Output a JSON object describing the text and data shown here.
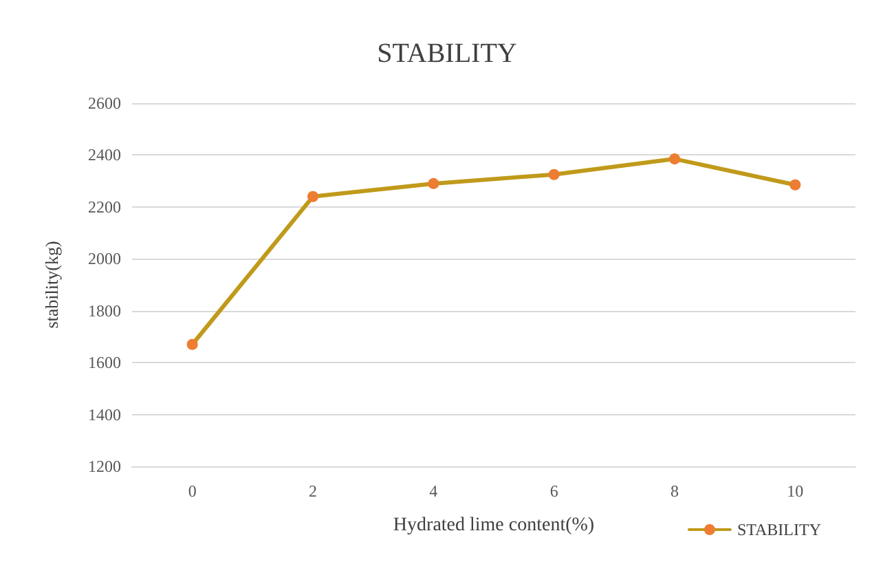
{
  "chart_data": {
    "type": "line",
    "title": "STABILITY",
    "xlabel": "Hydrated lime content(%)",
    "ylabel": "stability(kg)",
    "categories": [
      "0",
      "2",
      "4",
      "6",
      "8",
      "10"
    ],
    "series": [
      {
        "name": "STABILITY",
        "color": "#c09a1a",
        "values": [
          1670,
          2240,
          2290,
          2325,
          2385,
          2285
        ]
      }
    ],
    "ylim": [
      1200,
      2600
    ],
    "yticks": [
      1200,
      1400,
      1600,
      1800,
      2000,
      2200,
      2400,
      2600
    ],
    "grid": "y",
    "legend": "bottom right",
    "marker": "circle",
    "line_style": "solid"
  }
}
